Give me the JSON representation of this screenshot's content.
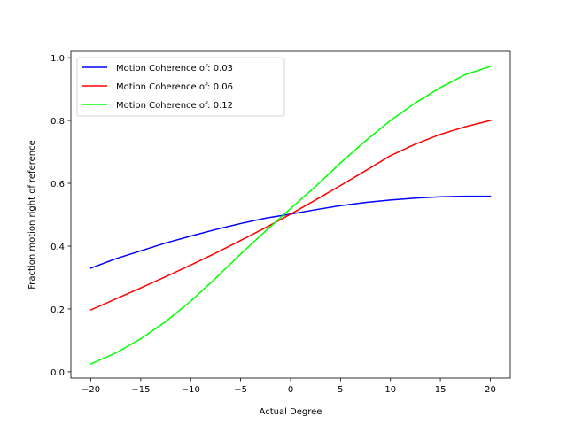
{
  "chart_data": {
    "type": "line",
    "xlabel": "Actual Degree",
    "ylabel": "Fraction motion right of reference",
    "xlim": [
      -22,
      22
    ],
    "ylim": [
      -0.02,
      1.02
    ],
    "x_ticks": [
      -20,
      -15,
      -10,
      -5,
      0,
      5,
      10,
      15,
      20
    ],
    "x_tick_labels": [
      "−20",
      "−15",
      "−10",
      "−5",
      "0",
      "5",
      "10",
      "15",
      "20"
    ],
    "y_ticks": [
      0.0,
      0.2,
      0.4,
      0.6,
      0.8,
      1.0
    ],
    "y_tick_labels": [
      "0.0",
      "0.2",
      "0.4",
      "0.6",
      "0.8",
      "1.0"
    ],
    "grid": false,
    "legend_position": "top-left",
    "x": [
      -20,
      -17.5,
      -15,
      -12.5,
      -10,
      -7.5,
      -5,
      -2.5,
      0,
      2.5,
      5,
      7.5,
      10,
      12.5,
      15,
      17.5,
      20
    ],
    "series": [
      {
        "name": "Motion Coherence of: 0.03",
        "color": "#0000ff",
        "values": [
          0.33,
          0.36,
          0.385,
          0.41,
          0.432,
          0.453,
          0.472,
          0.489,
          0.502,
          0.516,
          0.529,
          0.539,
          0.547,
          0.553,
          0.557,
          0.559,
          0.559
        ]
      },
      {
        "name": "Motion Coherence of: 0.06",
        "color": "#ff0000",
        "values": [
          0.197,
          0.232,
          0.267,
          0.303,
          0.34,
          0.378,
          0.418,
          0.459,
          0.502,
          0.547,
          0.593,
          0.64,
          0.688,
          0.725,
          0.756,
          0.78,
          0.8
        ]
      },
      {
        "name": "Motion Coherence of: 0.12",
        "color": "#00ff00",
        "values": [
          0.025,
          0.06,
          0.105,
          0.16,
          0.225,
          0.298,
          0.375,
          0.448,
          0.52,
          0.59,
          0.665,
          0.735,
          0.8,
          0.856,
          0.905,
          0.946,
          0.972
        ]
      }
    ]
  }
}
